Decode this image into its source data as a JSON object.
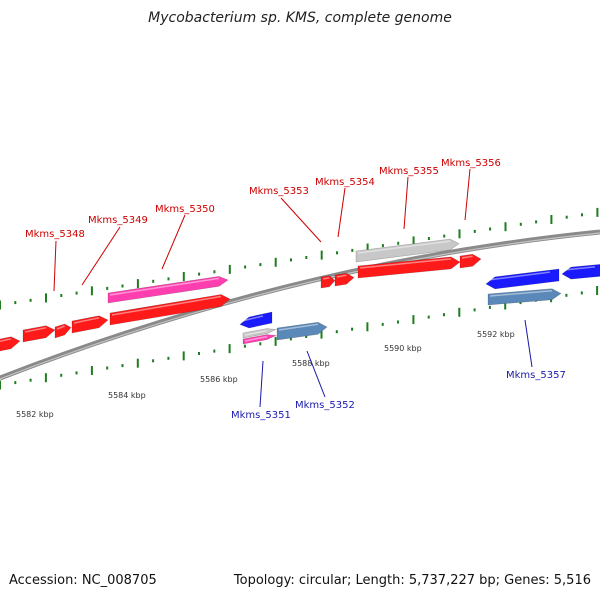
{
  "title": "Mycobacterium sp. KMS, complete genome",
  "footer": {
    "accession": "Accession: NC_008705",
    "topology": "Topology: circular; Length: 5,737,227 bp; Genes: 5,516"
  },
  "colors": {
    "backbone": "#8a8a8a",
    "tick": "#1e7d1e",
    "red": "#ff1a1a",
    "blue": "#1a1aff",
    "magenta": "#ff3fb0",
    "grey": "#c8c8c8",
    "steel": "#5a88b8",
    "label_red": "#cc0000",
    "label_blue": "#1a1aaa"
  },
  "axis": {
    "tick_labels": [
      "5582 kbp",
      "5584 kbp",
      "5586 kbp",
      "5588 kbp",
      "5590 kbp",
      "5592 kbp"
    ]
  },
  "genes": [
    {
      "name": "",
      "track": "red"
    },
    {
      "name": "",
      "track": "red"
    },
    {
      "name": "",
      "track": "red"
    },
    {
      "name": "Mkms_5348",
      "track": "red"
    },
    {
      "name": "Mkms_5349",
      "track": "magenta"
    },
    {
      "name": "Mkms_5350",
      "track": "red"
    },
    {
      "name": "Mkms_5351",
      "track": "blue"
    },
    {
      "name": "",
      "track": "grey"
    },
    {
      "name": "",
      "track": "magenta"
    },
    {
      "name": "Mkms_5352",
      "track": "steel"
    },
    {
      "name": "Mkms_5353",
      "track": "red"
    },
    {
      "name": "Mkms_5354",
      "track": "red"
    },
    {
      "name": "Mkms_5355",
      "track": "grey"
    },
    {
      "name": "Mkms_5356",
      "track": "red"
    },
    {
      "name": "",
      "track": "red"
    },
    {
      "name": "Mkms_5357",
      "track": "blue"
    },
    {
      "name": "",
      "track": "steel"
    },
    {
      "name": "",
      "track": "blue"
    }
  ]
}
